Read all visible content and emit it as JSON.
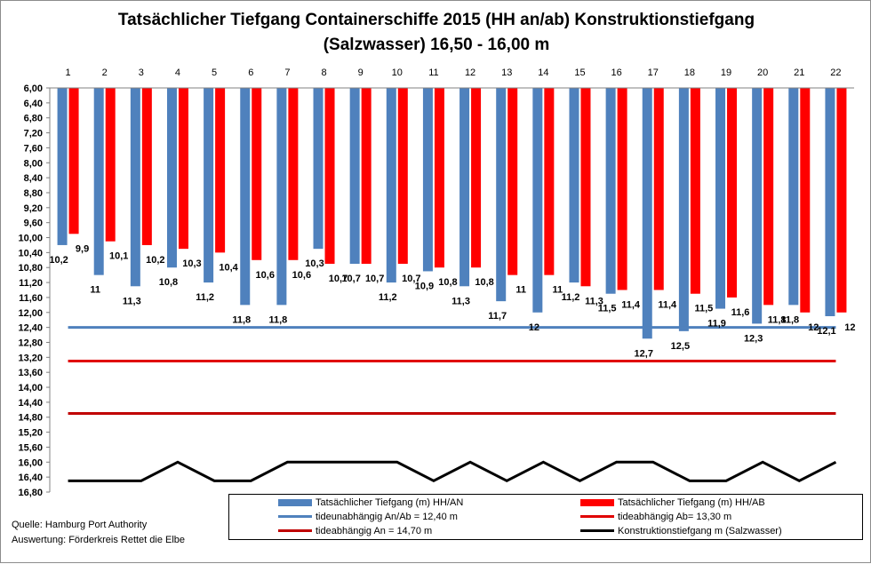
{
  "title_line1": "Tatsächlicher  Tiefgang  Containerschiffe  2015  (HH an/ab)  Konstruktionstiefgang",
  "title_line2": "(Salzwasser)  16,50 - 16,00 m",
  "source_line1": "Quelle: Hamburg Port Authority",
  "source_line2": "Auswertung: Förderkreis Rettet die Elbe",
  "legend": {
    "an_label": "Tatsächlicher Tiefgang (m) HH/AN",
    "ab_label": "Tatsächlicher Tiefgang (m) HH/AB",
    "ref_anab_label": "tideunabhängig An/Ab = 12,40 m",
    "ref_ab_label": "tideabhängig Ab= 13,30 m",
    "ref_an_label": "tideabhängig An = 14,70 m",
    "konstr_label": "Konstruktionstiefgang  m (Salzwasser)"
  },
  "colors": {
    "an": "#4f81bd",
    "ab": "#ff0000",
    "ref_anab": "#4f81bd",
    "ref_ab": "#e00000",
    "ref_an": "#c00000",
    "konstr": "#000000"
  },
  "chart_data": {
    "type": "bar",
    "categories": [
      "1",
      "2",
      "3",
      "4",
      "5",
      "6",
      "7",
      "8",
      "9",
      "10",
      "11",
      "12",
      "13",
      "14",
      "15",
      "16",
      "17",
      "18",
      "19",
      "20",
      "21",
      "22"
    ],
    "series": [
      {
        "name": "Tatsächlicher Tiefgang (m) HH/AN",
        "values": [
          10.2,
          11,
          11.3,
          10.8,
          11.2,
          11.8,
          11.8,
          10.3,
          10.7,
          11.2,
          10.9,
          11.3,
          11.7,
          12,
          11.2,
          11.5,
          12.7,
          12.5,
          11.9,
          12.3,
          11.8,
          12.1
        ],
        "labels": [
          "10,2",
          "11",
          "11,3",
          "10,8",
          "11,2",
          "11,8",
          "11,8",
          "10,3",
          "10,7",
          "11,2",
          "10,9",
          "11,3",
          "11,7",
          "12",
          "11,2",
          "11,5",
          "12,7",
          "12,5",
          "11,9",
          "12,3",
          "11,8",
          "12,1"
        ]
      },
      {
        "name": "Tatsächlicher Tiefgang (m) HH/AB",
        "values": [
          9.9,
          10.1,
          10.2,
          10.3,
          10.4,
          10.6,
          10.6,
          10.7,
          10.7,
          10.7,
          10.8,
          10.8,
          11,
          11,
          11.3,
          11.4,
          11.4,
          11.5,
          11.6,
          11.8,
          12,
          12
        ],
        "labels": [
          "9,9",
          "10,1",
          "10,2",
          "10,3",
          "10,4",
          "10,6",
          "10,6",
          "10,7",
          "10,7",
          "10,7",
          "10,8",
          "10,8",
          "11",
          "11",
          "11,3",
          "11,4",
          "11,4",
          "11,5",
          "11,6",
          "11,8",
          "12",
          "12"
        ]
      },
      {
        "name": "tideunabhängig An/Ab = 12,40 m",
        "type": "line",
        "value": 12.4
      },
      {
        "name": "tideabhängig Ab= 13,30 m",
        "type": "line",
        "value": 13.3
      },
      {
        "name": "tideabhängig An = 14,70 m",
        "type": "line",
        "value": 14.7
      },
      {
        "name": "Konstruktionstiefgang  m (Salzwasser)",
        "type": "line",
        "values": [
          16.5,
          16.5,
          16.5,
          16.0,
          16.5,
          16.5,
          16.0,
          16.0,
          16.0,
          16.0,
          16.5,
          16.0,
          16.5,
          16.0,
          16.5,
          16.0,
          16.0,
          16.5,
          16.5,
          16.0,
          16.5,
          16.0
        ]
      }
    ],
    "y_axis": {
      "min": 6.0,
      "max": 16.8,
      "step": 0.4,
      "inverted": true,
      "tick_labels": [
        "6,00",
        "6,40",
        "6,80",
        "7,20",
        "7,60",
        "8,00",
        "8,40",
        "8,80",
        "9,20",
        "9,60",
        "10,00",
        "10,40",
        "10,80",
        "11,20",
        "11,60",
        "12,00",
        "12,40",
        "12,80",
        "13,20",
        "13,60",
        "14,00",
        "14,40",
        "14,80",
        "15,20",
        "15,60",
        "16,00",
        "16,40",
        "16,80"
      ]
    },
    "x_axis_position": "top",
    "grid": false,
    "legend_position": "bottom"
  }
}
